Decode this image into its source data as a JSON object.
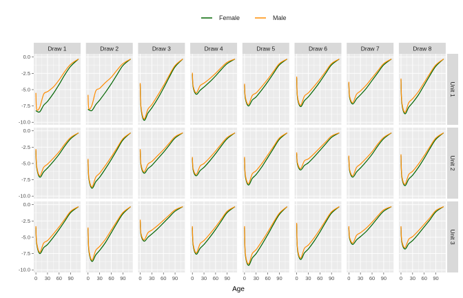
{
  "chart_data": {
    "type": "line",
    "layout": "facet_grid",
    "xlabel": "Age",
    "ylabel": "",
    "xlim": [
      0,
      110
    ],
    "ylim": [
      -10.4,
      0.5
    ],
    "x_ticks": [
      0,
      30,
      60,
      90
    ],
    "y_ticks": [
      0.0,
      -2.5,
      -5.0,
      -7.5,
      -10.0
    ],
    "y_tick_labels": [
      "0.0",
      "-2.5",
      "-5.0",
      "-7.5",
      "-10.0"
    ],
    "grid": true,
    "legend": {
      "placement": "top",
      "entries": [
        {
          "name": "Female",
          "color": "#006400"
        },
        {
          "name": "Male",
          "color": "#FF8C00"
        }
      ]
    },
    "columns": [
      "Draw 1",
      "Draw 2",
      "Draw 3",
      "Draw 4",
      "Draw 5",
      "Draw 6",
      "Draw 7",
      "Draw 8"
    ],
    "rows": [
      "Unit 1",
      "Unit 2",
      "Unit 3"
    ],
    "x": [
      0,
      2,
      10,
      20,
      30,
      45,
      60,
      75,
      90,
      110
    ],
    "panels": [
      [
        {
          "Female": [
            -8.2,
            -8.3,
            -8.4,
            -7.4,
            -6.8,
            -5.6,
            -4.2,
            -2.7,
            -1.4,
            -0.3
          ],
          "Male": [
            -5.5,
            -8.0,
            -7.7,
            -5.7,
            -5.3,
            -4.6,
            -3.5,
            -2.2,
            -1.1,
            -0.3
          ]
        },
        {
          "Female": [
            -8.0,
            -8.1,
            -8.2,
            -7.3,
            -6.6,
            -5.4,
            -4.1,
            -2.7,
            -1.3,
            -0.3
          ],
          "Male": [
            -5.8,
            -7.9,
            -7.4,
            -5.2,
            -4.8,
            -3.9,
            -3.1,
            -2.0,
            -1.0,
            -0.3
          ]
        },
        {
          "Female": [
            -4.2,
            -7.8,
            -9.7,
            -8.6,
            -7.8,
            -6.4,
            -4.8,
            -3.1,
            -1.5,
            -0.3
          ],
          "Male": [
            -4.0,
            -7.6,
            -9.5,
            -8.0,
            -7.3,
            -5.9,
            -4.4,
            -2.8,
            -1.3,
            -0.3
          ]
        },
        {
          "Female": [
            -2.6,
            -4.6,
            -5.7,
            -5.1,
            -4.6,
            -3.8,
            -2.9,
            -1.9,
            -1.0,
            -0.3
          ],
          "Male": [
            -2.4,
            -4.4,
            -5.5,
            -4.4,
            -4.0,
            -3.3,
            -2.5,
            -1.6,
            -0.8,
            -0.3
          ]
        },
        {
          "Female": [
            -4.3,
            -6.3,
            -7.5,
            -6.6,
            -6.1,
            -5.0,
            -3.8,
            -2.5,
            -1.2,
            -0.3
          ],
          "Male": [
            -4.1,
            -6.1,
            -7.3,
            -5.9,
            -5.5,
            -4.5,
            -3.4,
            -2.2,
            -1.0,
            -0.3
          ]
        },
        {
          "Female": [
            -3.2,
            -6.2,
            -7.6,
            -6.7,
            -6.1,
            -5.0,
            -3.8,
            -2.5,
            -1.2,
            -0.3
          ],
          "Male": [
            -3.0,
            -6.0,
            -7.4,
            -6.0,
            -5.5,
            -4.5,
            -3.4,
            -2.2,
            -1.0,
            -0.3
          ]
        },
        {
          "Female": [
            -4.0,
            -6.2,
            -7.2,
            -6.4,
            -5.8,
            -4.8,
            -3.6,
            -2.4,
            -1.2,
            -0.3
          ],
          "Male": [
            -3.8,
            -6.0,
            -7.0,
            -5.7,
            -5.2,
            -4.3,
            -3.2,
            -2.1,
            -1.0,
            -0.3
          ]
        },
        {
          "Female": [
            -3.5,
            -7.0,
            -8.7,
            -7.7,
            -7.0,
            -5.8,
            -4.3,
            -2.8,
            -1.4,
            -0.3
          ],
          "Male": [
            -3.3,
            -6.8,
            -8.5,
            -7.0,
            -6.4,
            -5.3,
            -3.9,
            -2.5,
            -1.2,
            -0.3
          ]
        }
      ],
      [
        {
          "Female": [
            -3.0,
            -5.6,
            -7.1,
            -6.3,
            -5.7,
            -4.7,
            -3.6,
            -2.3,
            -1.2,
            -0.3
          ],
          "Male": [
            -2.8,
            -5.4,
            -6.9,
            -5.6,
            -5.1,
            -4.2,
            -3.2,
            -2.0,
            -1.0,
            -0.3
          ]
        },
        {
          "Female": [
            -4.5,
            -7.3,
            -8.8,
            -7.8,
            -7.1,
            -5.8,
            -4.4,
            -2.9,
            -1.4,
            -0.3
          ],
          "Male": [
            -4.3,
            -7.1,
            -8.6,
            -7.1,
            -6.5,
            -5.3,
            -4.0,
            -2.6,
            -1.2,
            -0.3
          ]
        },
        {
          "Female": [
            -3.0,
            -5.3,
            -6.5,
            -5.8,
            -5.3,
            -4.3,
            -3.3,
            -2.2,
            -1.1,
            -0.3
          ],
          "Male": [
            -2.8,
            -5.1,
            -6.3,
            -5.1,
            -4.7,
            -3.8,
            -2.9,
            -1.9,
            -0.9,
            -0.3
          ]
        },
        {
          "Female": [
            -4.2,
            -6.0,
            -6.9,
            -6.1,
            -5.6,
            -4.6,
            -3.5,
            -2.3,
            -1.2,
            -0.3
          ],
          "Male": [
            -4.0,
            -5.8,
            -6.7,
            -5.4,
            -5.0,
            -4.1,
            -3.1,
            -2.0,
            -1.0,
            -0.3
          ]
        },
        {
          "Female": [
            -4.2,
            -6.9,
            -8.3,
            -7.3,
            -6.7,
            -5.5,
            -4.1,
            -2.7,
            -1.3,
            -0.3
          ],
          "Male": [
            -4.0,
            -6.7,
            -8.1,
            -6.6,
            -6.1,
            -5.0,
            -3.7,
            -2.4,
            -1.1,
            -0.3
          ]
        },
        {
          "Female": [
            -3.5,
            -5.1,
            -6.0,
            -5.3,
            -4.9,
            -4.0,
            -3.0,
            -2.0,
            -1.0,
            -0.3
          ],
          "Male": [
            -3.3,
            -4.9,
            -5.8,
            -4.6,
            -4.3,
            -3.5,
            -2.6,
            -1.7,
            -0.8,
            -0.3
          ]
        },
        {
          "Female": [
            -4.0,
            -6.1,
            -7.1,
            -6.3,
            -5.7,
            -4.7,
            -3.6,
            -2.3,
            -1.2,
            -0.3
          ],
          "Male": [
            -3.8,
            -5.9,
            -6.9,
            -5.6,
            -5.1,
            -4.2,
            -3.2,
            -2.0,
            -1.0,
            -0.3
          ]
        },
        {
          "Female": [
            -3.8,
            -7.0,
            -8.4,
            -7.4,
            -6.8,
            -5.6,
            -4.2,
            -2.7,
            -1.3,
            -0.3
          ],
          "Male": [
            -3.6,
            -6.8,
            -8.2,
            -6.7,
            -6.2,
            -5.1,
            -3.8,
            -2.4,
            -1.1,
            -0.3
          ]
        }
      ],
      [
        {
          "Female": [
            -3.5,
            -6.0,
            -7.5,
            -6.6,
            -6.1,
            -5.0,
            -3.8,
            -2.5,
            -1.2,
            -0.3
          ],
          "Male": [
            -3.3,
            -5.8,
            -7.3,
            -5.9,
            -5.5,
            -4.5,
            -3.4,
            -2.2,
            -1.0,
            -0.3
          ]
        },
        {
          "Female": [
            -3.7,
            -7.0,
            -8.7,
            -7.7,
            -7.0,
            -5.8,
            -4.3,
            -2.8,
            -1.4,
            -0.3
          ],
          "Male": [
            -3.5,
            -6.8,
            -8.5,
            -7.0,
            -6.4,
            -5.3,
            -3.9,
            -2.5,
            -1.2,
            -0.3
          ]
        },
        {
          "Female": [
            -2.5,
            -4.6,
            -5.6,
            -5.0,
            -4.5,
            -3.7,
            -2.8,
            -1.9,
            -1.0,
            -0.3
          ],
          "Male": [
            -2.3,
            -4.4,
            -5.4,
            -4.3,
            -3.9,
            -3.2,
            -2.4,
            -1.6,
            -0.8,
            -0.3
          ]
        },
        {
          "Female": [
            -3.5,
            -6.2,
            -7.6,
            -6.7,
            -6.1,
            -5.0,
            -3.8,
            -2.5,
            -1.2,
            -0.3
          ],
          "Male": [
            -3.3,
            -6.0,
            -7.4,
            -6.0,
            -5.5,
            -4.5,
            -3.4,
            -2.2,
            -1.0,
            -0.3
          ]
        },
        {
          "Female": [
            -3.5,
            -7.6,
            -9.3,
            -8.2,
            -7.5,
            -6.1,
            -4.6,
            -3.0,
            -1.5,
            -0.3
          ],
          "Male": [
            -3.3,
            -7.4,
            -9.1,
            -7.5,
            -6.9,
            -5.6,
            -4.2,
            -2.7,
            -1.3,
            -0.3
          ]
        },
        {
          "Female": [
            -3.0,
            -6.8,
            -8.4,
            -7.4,
            -6.8,
            -5.6,
            -4.2,
            -2.7,
            -1.3,
            -0.3
          ],
          "Male": [
            -2.8,
            -6.6,
            -8.2,
            -6.7,
            -6.2,
            -5.1,
            -3.8,
            -2.4,
            -1.1,
            -0.3
          ]
        },
        {
          "Female": [
            -3.5,
            -5.2,
            -6.1,
            -5.4,
            -4.9,
            -4.1,
            -3.1,
            -2.0,
            -1.0,
            -0.3
          ],
          "Male": [
            -3.3,
            -5.0,
            -5.9,
            -4.7,
            -4.3,
            -3.6,
            -2.7,
            -1.7,
            -0.8,
            -0.3
          ]
        },
        {
          "Female": [
            -3.5,
            -5.7,
            -6.8,
            -6.0,
            -5.5,
            -4.5,
            -3.4,
            -2.3,
            -1.1,
            -0.3
          ],
          "Male": [
            -3.3,
            -5.5,
            -6.6,
            -5.3,
            -4.9,
            -4.0,
            -3.0,
            -2.0,
            -0.9,
            -0.3
          ]
        }
      ]
    ]
  }
}
